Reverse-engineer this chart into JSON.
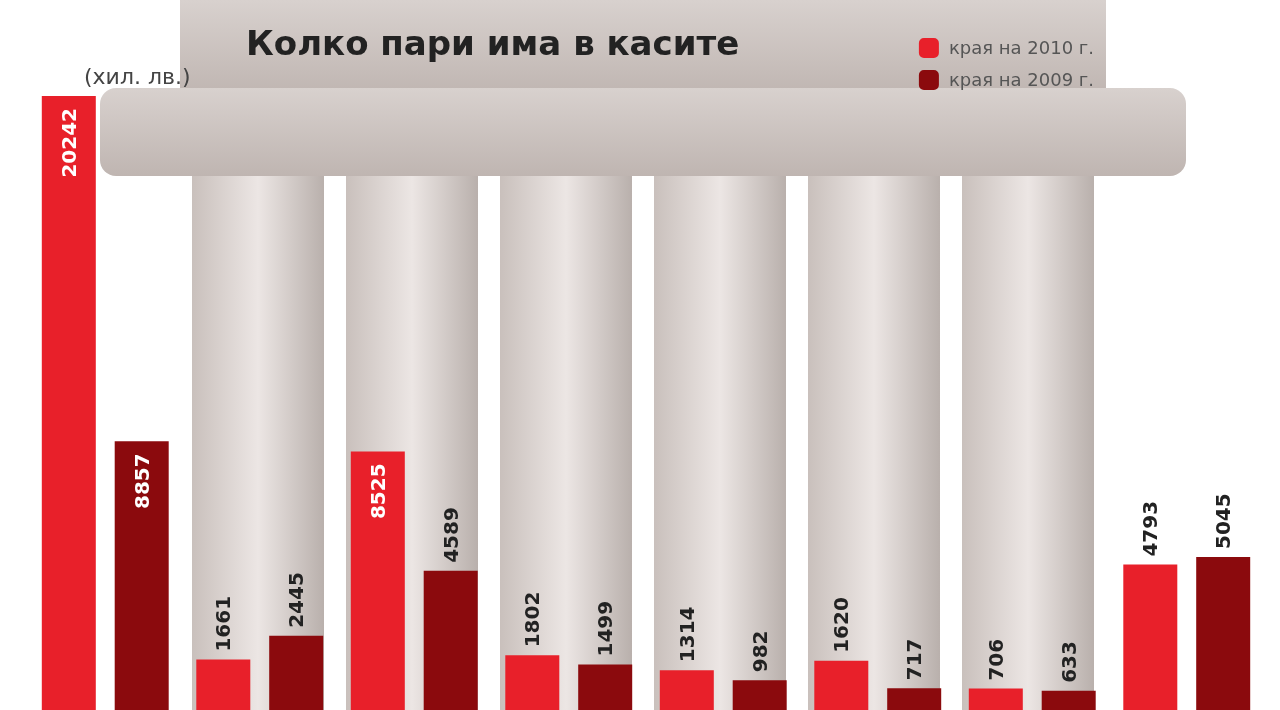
{
  "chart_data": {
    "type": "bar",
    "title": "Колко пари има в касите",
    "ylabel": "(хил. лв.)",
    "categories": [
      null,
      null,
      null,
      null,
      null,
      null,
      null,
      null
    ],
    "series": [
      {
        "name": "края на 2010 г.",
        "color": "#e8202a",
        "values": [
          20242,
          1661,
          8525,
          1802,
          1314,
          1620,
          706,
          4793
        ]
      },
      {
        "name": "края на 2009 г.",
        "color": "#8b0a0d",
        "values": [
          8857,
          2445,
          4589,
          1499,
          982,
          717,
          633,
          5045
        ]
      }
    ],
    "data_labels": true,
    "legend": "top right",
    "grid": false,
    "tick_labels": false
  }
}
